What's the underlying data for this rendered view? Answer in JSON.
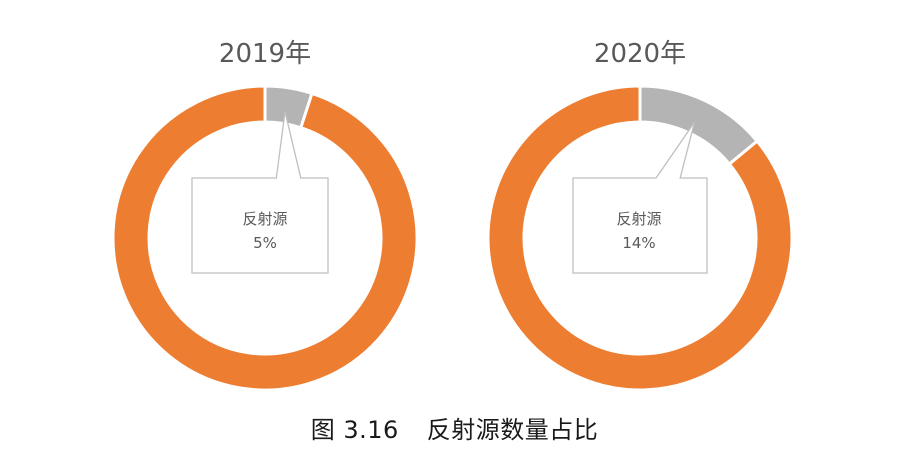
{
  "figure": {
    "caption_prefix": "图 3.16",
    "caption_text": "反射源数量占比"
  },
  "colors": {
    "main": "#ED7D31",
    "highlight": "#B4B4B4",
    "callout_border": "#BFBFBF",
    "text": "#595959"
  },
  "chart_data": [
    {
      "type": "pie",
      "variant": "donut",
      "title": "2019年",
      "slices": [
        {
          "label": "反射源",
          "value": 5,
          "display_value": "5%",
          "color": "#B4B4B4"
        },
        {
          "label": "",
          "value": 95,
          "color": "#ED7D31"
        }
      ]
    },
    {
      "type": "pie",
      "variant": "donut",
      "title": "2020年",
      "slices": [
        {
          "label": "反射源",
          "value": 14,
          "display_value": "14%",
          "color": "#B4B4B4"
        },
        {
          "label": "",
          "value": 86,
          "color": "#ED7D31"
        }
      ]
    }
  ]
}
